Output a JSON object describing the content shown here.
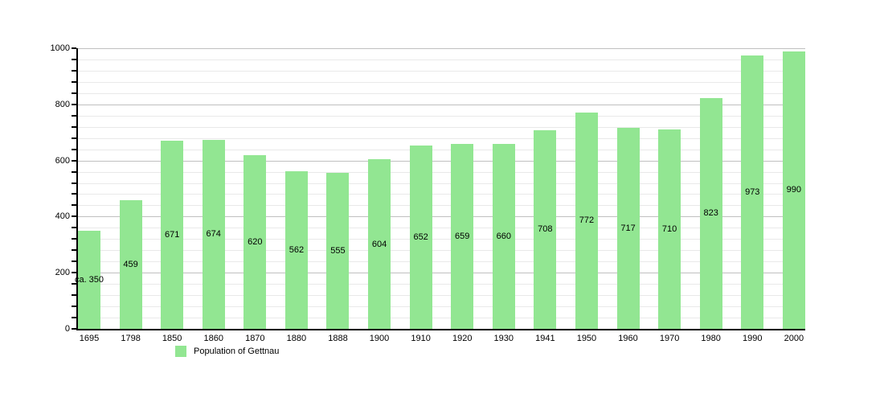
{
  "chart_style": {
    "background_color": "#ffffff",
    "bar_color": "#92e692",
    "grid_minor_color": "#e9e9e9",
    "grid_major_color": "#c0c0c0",
    "axis_color": "#000000",
    "text_color": "#000000"
  },
  "chart_data": {
    "type": "bar",
    "title": "",
    "xlabel": "",
    "ylabel": "",
    "categories": [
      "1695",
      "1798",
      "1850",
      "1860",
      "1870",
      "1880",
      "1888",
      "1900",
      "1910",
      "1920",
      "1930",
      "1941",
      "1950",
      "1960",
      "1970",
      "1980",
      "1990",
      "2000"
    ],
    "values": [
      350,
      459,
      671,
      674,
      620,
      562,
      555,
      604,
      652,
      659,
      660,
      708,
      772,
      717,
      710,
      823,
      973,
      990
    ],
    "bar_labels": [
      "ca. 350",
      "459",
      "671",
      "674",
      "620",
      "562",
      "555",
      "604",
      "652",
      "659",
      "660",
      "708",
      "772",
      "717",
      "710",
      "823",
      "973",
      "990"
    ],
    "ylim": [
      0,
      1000
    ],
    "yticks_major": [
      0,
      200,
      400,
      600,
      800,
      1000
    ],
    "ytick_minor_step": 40,
    "grid": "horizontal",
    "legend_position": "bottom-left",
    "legend_entries": [
      "Population of Gettnau"
    ]
  },
  "legend": {
    "label": "Population of Gettnau"
  }
}
